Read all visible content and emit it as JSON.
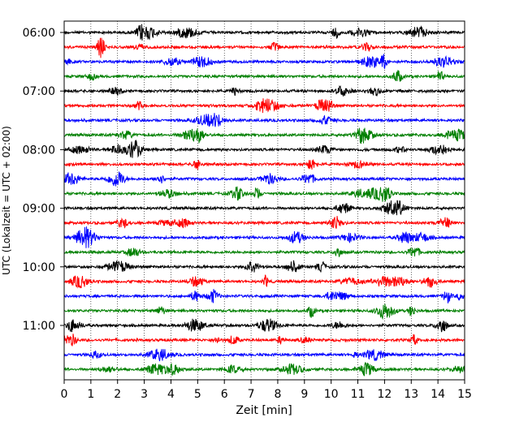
{
  "chart_data": {
    "type": "line",
    "subtype": "helicorder",
    "title": "",
    "xlabel": "Zeit  [min]",
    "ylabel": "UTC (Lokalzeit = UTC + 02:00)",
    "xlim": [
      0,
      15
    ],
    "xticks": [
      0,
      1,
      2,
      3,
      4,
      5,
      6,
      7,
      8,
      9,
      10,
      11,
      12,
      13,
      14,
      15
    ],
    "ytick_labels": [
      "06:00",
      "07:00",
      "08:00",
      "09:00",
      "10:00",
      "11:00"
    ],
    "trace_start_times": [
      "06:00",
      "06:15",
      "06:30",
      "06:45",
      "07:00",
      "07:15",
      "07:30",
      "07:45",
      "08:00",
      "08:15",
      "08:30",
      "08:45",
      "09:00",
      "09:15",
      "09:30",
      "09:45",
      "10:00",
      "10:15",
      "10:30",
      "10:45",
      "11:00",
      "11:15",
      "11:30",
      "11:45"
    ],
    "trace_colors": [
      "#000000",
      "#ff0000",
      "#0000ff",
      "#008000"
    ],
    "grid": "vertical dotted at each minute",
    "legend": "none"
  }
}
